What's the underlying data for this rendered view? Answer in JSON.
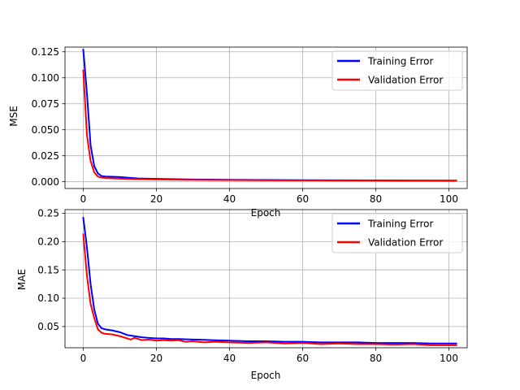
{
  "chart_data": [
    {
      "type": "line",
      "title": "",
      "xlabel": "Epoch",
      "ylabel": "MSE",
      "xlim": [
        -5,
        105
      ],
      "ylim": [
        -0.0065,
        0.1295
      ],
      "xticks": [
        0,
        20,
        40,
        60,
        80,
        100
      ],
      "xtick_labels": [
        "0",
        "20",
        "40",
        "60",
        "80",
        "100"
      ],
      "yticks": [
        0.0,
        0.025,
        0.05,
        0.075,
        0.1,
        0.125
      ],
      "ytick_labels": [
        "0.000",
        "0.025",
        "0.050",
        "0.075",
        "0.100",
        "0.125"
      ],
      "grid": true,
      "legend_position": "top-right",
      "series": [
        {
          "name": "Training Error",
          "color": "#0000ff",
          "x": [
            0,
            1,
            2,
            3,
            4,
            5,
            6,
            8,
            10,
            12,
            15,
            20,
            25,
            30,
            40,
            50,
            60,
            70,
            80,
            90,
            102
          ],
          "y": [
            0.127,
            0.085,
            0.035,
            0.015,
            0.008,
            0.0055,
            0.005,
            0.0048,
            0.0045,
            0.004,
            0.0032,
            0.0028,
            0.0025,
            0.0022,
            0.0019,
            0.0017,
            0.0015,
            0.0014,
            0.0013,
            0.0012,
            0.0011
          ]
        },
        {
          "name": "Validation Error",
          "color": "#ff0000",
          "x": [
            0,
            1,
            2,
            3,
            4,
            5,
            6,
            8,
            10,
            12,
            15,
            20,
            25,
            30,
            40,
            50,
            60,
            70,
            80,
            90,
            102
          ],
          "y": [
            0.107,
            0.045,
            0.02,
            0.009,
            0.005,
            0.004,
            0.0035,
            0.0033,
            0.003,
            0.0028,
            0.0025,
            0.0022,
            0.002,
            0.0018,
            0.0016,
            0.0014,
            0.0013,
            0.0012,
            0.0011,
            0.001,
            0.001
          ]
        }
      ]
    },
    {
      "type": "line",
      "title": "",
      "xlabel": "Epoch",
      "ylabel": "MAE",
      "xlim": [
        -5,
        105
      ],
      "ylim": [
        0.0125,
        0.2565
      ],
      "xticks": [
        0,
        20,
        40,
        60,
        80,
        100
      ],
      "xtick_labels": [
        "0",
        "20",
        "40",
        "60",
        "80",
        "100"
      ],
      "yticks": [
        0.05,
        0.1,
        0.15,
        0.2,
        0.25
      ],
      "ytick_labels": [
        "0.05",
        "0.10",
        "0.15",
        "0.20",
        "0.25"
      ],
      "grid": true,
      "legend_position": "top-right",
      "series": [
        {
          "name": "Training Error",
          "color": "#0000ff",
          "x": [
            0,
            1,
            2,
            3,
            4,
            5,
            6,
            8,
            10,
            12,
            14,
            16,
            18,
            20,
            22,
            24,
            26,
            30,
            35,
            40,
            45,
            50,
            55,
            60,
            65,
            70,
            75,
            80,
            85,
            90,
            95,
            100,
            102
          ],
          "y": [
            0.242,
            0.19,
            0.125,
            0.08,
            0.055,
            0.047,
            0.045,
            0.043,
            0.04,
            0.035,
            0.033,
            0.031,
            0.03,
            0.029,
            0.029,
            0.028,
            0.028,
            0.027,
            0.026,
            0.025,
            0.024,
            0.024,
            0.023,
            0.023,
            0.022,
            0.022,
            0.022,
            0.021,
            0.021,
            0.021,
            0.02,
            0.02,
            0.02
          ]
        },
        {
          "name": "Validation Error",
          "color": "#ff0000",
          "x": [
            0,
            1,
            2,
            3,
            4,
            5,
            6,
            8,
            10,
            12,
            13,
            14,
            16,
            18,
            20,
            22,
            24,
            26,
            28,
            30,
            33,
            36,
            40,
            45,
            50,
            55,
            60,
            65,
            70,
            75,
            80,
            85,
            90,
            95,
            100,
            102
          ],
          "y": [
            0.213,
            0.14,
            0.09,
            0.065,
            0.045,
            0.039,
            0.037,
            0.036,
            0.033,
            0.029,
            0.027,
            0.03,
            0.026,
            0.027,
            0.025,
            0.026,
            0.025,
            0.026,
            0.023,
            0.024,
            0.022,
            0.023,
            0.022,
            0.021,
            0.022,
            0.02,
            0.021,
            0.019,
            0.02,
            0.019,
            0.019,
            0.018,
            0.019,
            0.017,
            0.017,
            0.017
          ]
        }
      ]
    }
  ]
}
